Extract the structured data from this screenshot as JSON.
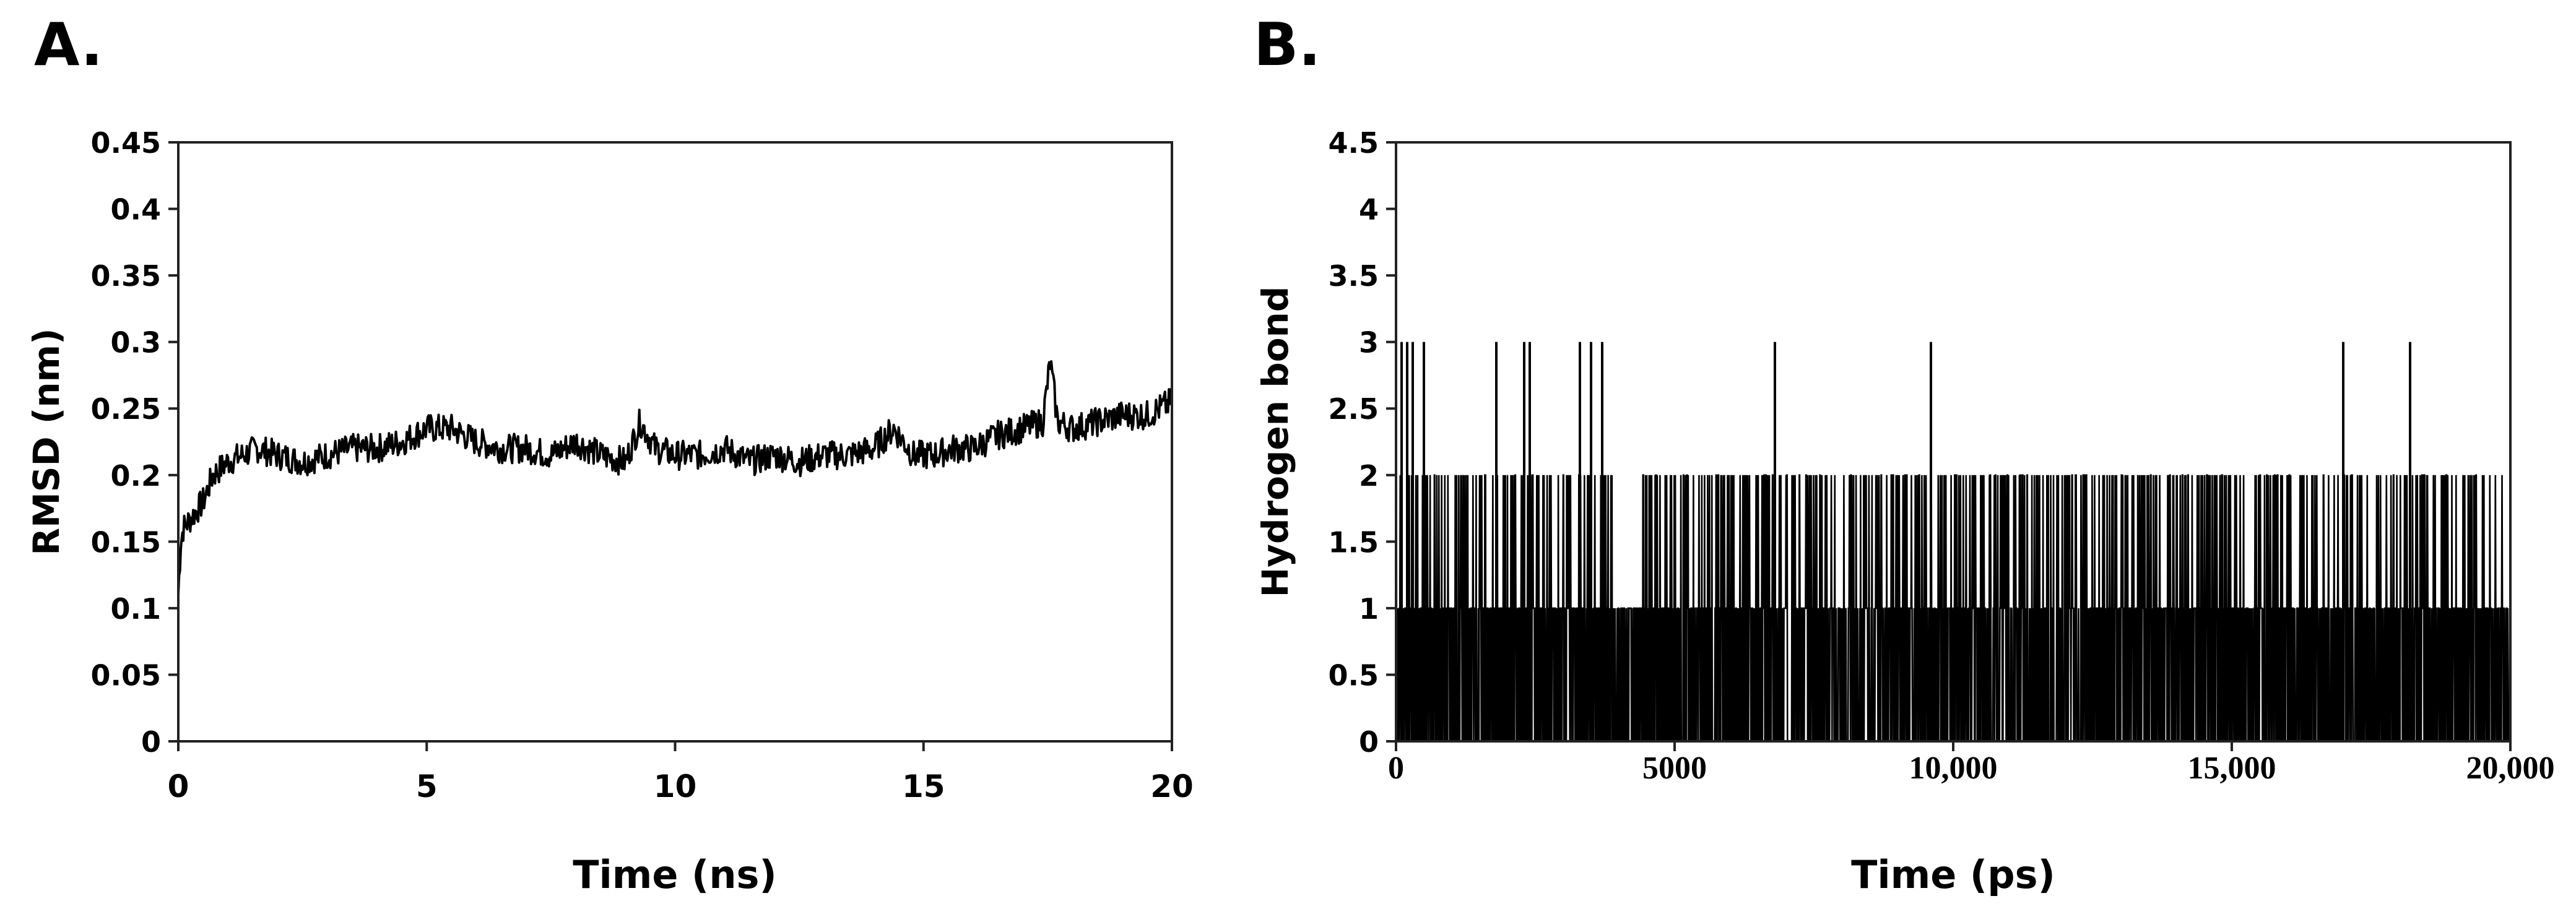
{
  "chart_data": [
    {
      "panel_label": "A.",
      "type": "line",
      "xlabel": "Time (ns)",
      "ylabel": "RMSD (nm)",
      "xlim": [
        0,
        20
      ],
      "ylim": [
        0,
        0.45
      ],
      "xticks": [
        "0",
        "5",
        "10",
        "15",
        "20"
      ],
      "yticks": [
        "0",
        "0.05",
        "0.1",
        "0.15",
        "0.2",
        "0.25",
        "0.3",
        "0.35",
        "0.4",
        "0.45"
      ],
      "grid": false,
      "color": "#000000",
      "series": [
        {
          "x": [
            0,
            0.05,
            0.1,
            0.3,
            0.5,
            0.7,
            1.0,
            1.3,
            1.6,
            2.0,
            2.5,
            3.0,
            3.5,
            4.0,
            4.5,
            5.0,
            5.5,
            6.0,
            6.5,
            7.0,
            7.5,
            8.0,
            8.5,
            9.0,
            9.3,
            9.6,
            10.0,
            10.5,
            11.0,
            11.5,
            12.0,
            12.5,
            13.0,
            13.5,
            14.0,
            14.4,
            14.8,
            15.2,
            15.6,
            16.0,
            16.5,
            17.0,
            17.4,
            17.55,
            17.7,
            18.0,
            18.5,
            19.0,
            19.5,
            20.0
          ],
          "y": [
            0.11,
            0.15,
            0.16,
            0.17,
            0.18,
            0.2,
            0.21,
            0.215,
            0.22,
            0.215,
            0.21,
            0.215,
            0.22,
            0.22,
            0.225,
            0.235,
            0.235,
            0.225,
            0.22,
            0.22,
            0.215,
            0.225,
            0.215,
            0.21,
            0.24,
            0.22,
            0.215,
            0.215,
            0.22,
            0.21,
            0.215,
            0.21,
            0.215,
            0.215,
            0.22,
            0.235,
            0.215,
            0.215,
            0.22,
            0.22,
            0.23,
            0.235,
            0.24,
            0.285,
            0.24,
            0.235,
            0.24,
            0.245,
            0.245,
            0.255
          ]
        }
      ]
    },
    {
      "panel_label": "B.",
      "type": "line",
      "xlabel": "Time (ps)",
      "ylabel": "Hydrogen bond",
      "xlim": [
        0,
        20000
      ],
      "ylim": [
        0,
        4.5
      ],
      "xticks": [
        "0",
        "5000",
        "10,000",
        "15,000",
        "20,000"
      ],
      "yticks": [
        "0",
        "0.5",
        "1",
        "1.5",
        "2",
        "2.5",
        "3",
        "3.5",
        "4",
        "4.5"
      ],
      "grid": false,
      "color": "#000000",
      "series": [
        {
          "x": [
            0,
            100,
            200,
            300,
            500,
            1800,
            2300,
            2400,
            3300,
            3500,
            3700,
            3900,
            4400,
            4600,
            6800,
            9600,
            17000,
            18200,
            20000
          ],
          "y": [
            2,
            3,
            3,
            3,
            3,
            3,
            3,
            3,
            3,
            3,
            3,
            1,
            2,
            2,
            3,
            3,
            3,
            3,
            2
          ]
        }
      ],
      "spike_ranges_x": [
        [
          0,
          3900
        ],
        [
          4400,
          20000
        ]
      ]
    }
  ]
}
